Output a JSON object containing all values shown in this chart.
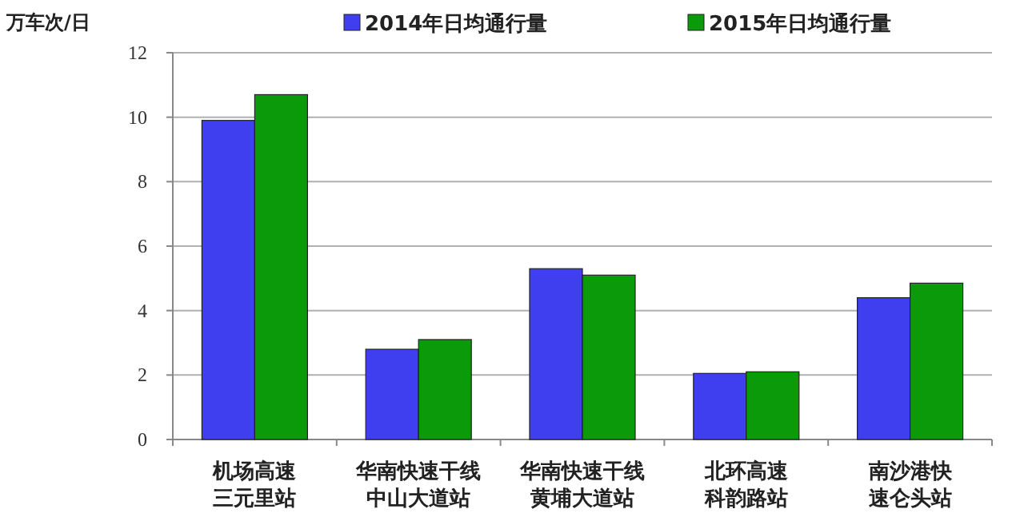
{
  "chart_data": {
    "type": "bar",
    "ylabel": "万车次/日",
    "categories": [
      "机场高速三元里站",
      "华南快速干线中山大道站",
      "华南快速干线黄埔大道站",
      "北环高速科韵路站",
      "南沙港快速仑头站"
    ],
    "series": [
      {
        "name": "2014年日均通行量",
        "color": "#3f3fef",
        "values": [
          9.9,
          2.8,
          5.3,
          2.05,
          4.4
        ]
      },
      {
        "name": "2015年日均通行量",
        "color": "#0a9a0a",
        "values": [
          10.7,
          3.1,
          5.1,
          2.1,
          4.85
        ]
      }
    ],
    "ylim": [
      0,
      12
    ],
    "yticks": [
      0,
      2,
      4,
      6,
      8,
      10,
      12
    ],
    "grid": "y",
    "legend": "top"
  }
}
